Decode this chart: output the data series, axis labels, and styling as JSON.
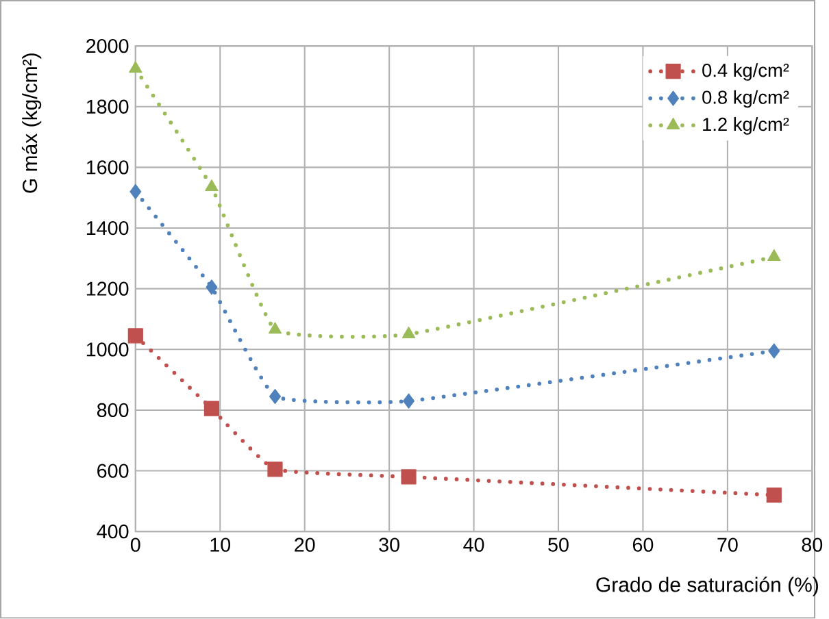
{
  "chart_data": {
    "type": "line",
    "xlabel": "Grado de saturación (%)",
    "ylabel": "G máx (kg/cm²)",
    "x": [
      0,
      9,
      16.5,
      32.3,
      75.5
    ],
    "series": [
      {
        "name": "0.4 kg/cm²",
        "color": "#c0504d",
        "marker": "square",
        "values": [
          1045,
          805,
          605,
          580,
          520
        ]
      },
      {
        "name": "0.8 kg/cm²",
        "color": "#4f81bd",
        "marker": "diamond",
        "values": [
          1520,
          1205,
          845,
          830,
          995
        ]
      },
      {
        "name": "1.2 kg/cm²",
        "color": "#9bbb59",
        "marker": "triangle",
        "values": [
          1925,
          1535,
          1065,
          1050,
          1305
        ]
      }
    ],
    "xlim": [
      0,
      80
    ],
    "xticks": [
      0,
      10,
      20,
      30,
      40,
      50,
      60,
      70,
      80
    ],
    "ylim": [
      400,
      2000
    ],
    "yticks": [
      400,
      600,
      800,
      1000,
      1200,
      1400,
      1600,
      1800,
      2000
    ],
    "grid": true,
    "legend": "top right",
    "line_style": "dotted"
  }
}
